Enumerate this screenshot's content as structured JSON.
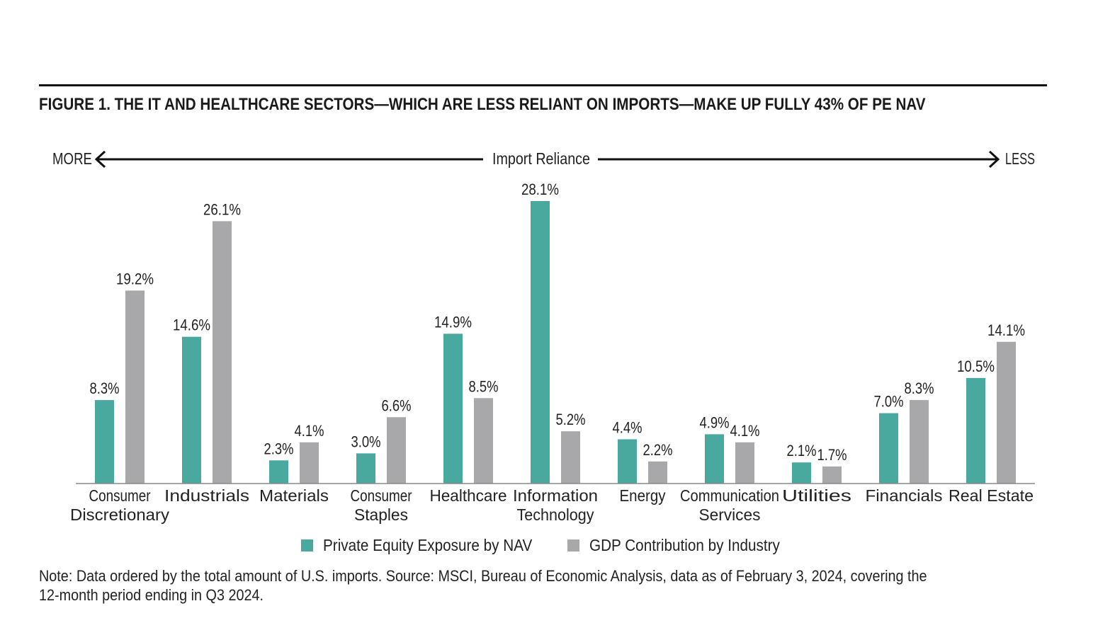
{
  "figure_title": "FIGURE 1. THE IT AND HEALTHCARE SECTORS—WHICH ARE LESS RELIANT ON IMPORTS—MAKE UP FULLY 43% OF PE NAV",
  "axis_banner": {
    "left": "MORE",
    "center": "Import Reliance",
    "right": "LESS"
  },
  "note": "Note: Data ordered by the total amount of U.S. imports. Source: MSCI, Bureau of Economic Analysis, data as of February 3, 2024, covering the 12-month period ending in Q3 2024.",
  "colors": {
    "pe": "#4aa99f",
    "gdp": "#a8a8aa"
  },
  "chart_data": {
    "type": "bar",
    "categories": [
      [
        "Consumer",
        "Discretionary"
      ],
      [
        "Industrials"
      ],
      [
        "Materials"
      ],
      [
        "Consumer",
        "Staples"
      ],
      [
        "Healthcare"
      ],
      [
        "Information",
        "Technology"
      ],
      [
        "Energy"
      ],
      [
        "Communication",
        "Services"
      ],
      [
        "Utilities"
      ],
      [
        "Financials"
      ],
      [
        "Real Estate"
      ]
    ],
    "series": [
      {
        "name": "Private Equity Exposure by NAV",
        "values": [
          8.3,
          14.6,
          2.3,
          3.0,
          14.9,
          28.1,
          4.4,
          4.9,
          2.1,
          7.0,
          10.5
        ],
        "labels": [
          "8.3%",
          "14.6%",
          "2.3%",
          "3.0%",
          "14.9%",
          "28.1%",
          "4.4%",
          "4.9%",
          "2.1%",
          "7.0%",
          "10.5%"
        ]
      },
      {
        "name": "GDP Contribution by Industry",
        "values": [
          19.2,
          26.1,
          4.1,
          6.6,
          8.5,
          5.2,
          2.2,
          4.1,
          1.7,
          8.3,
          14.1
        ],
        "labels": [
          "19.2%",
          "26.1%",
          "4.1%",
          "6.6%",
          "8.5%",
          "5.2%",
          "2.2%",
          "4.1%",
          "1.7%",
          "8.3%",
          "14.1%"
        ]
      }
    ],
    "ylim": [
      0,
      28.1
    ],
    "grid": false,
    "legend_position": "bottom"
  }
}
